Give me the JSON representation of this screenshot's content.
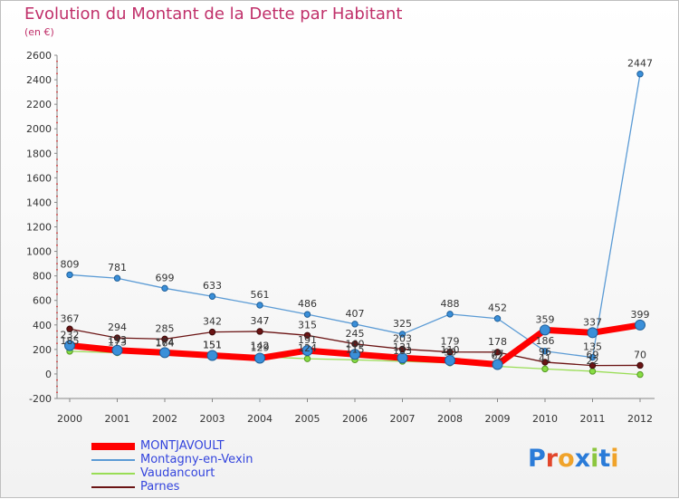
{
  "header": {
    "title": "Evolution du Montant de la Dette par Habitant",
    "unit": "(en €)"
  },
  "logo": {
    "text": "Proxiti",
    "letter_colors": [
      "#2a7bd8",
      "#e2462b",
      "#f0a32a",
      "#2a7bd8",
      "#8cc63f",
      "#2a7bd8",
      "#f0a32a"
    ]
  },
  "chart_data": {
    "type": "line",
    "title": "Evolution du Montant de la Dette par Habitant",
    "ylabel": "(en €)",
    "xlabel": "",
    "x": [
      "2000",
      "2001",
      "2002",
      "2003",
      "2004",
      "2005",
      "2006",
      "2007",
      "2008",
      "2009",
      "2010",
      "2011",
      "2012"
    ],
    "ylim": [
      -200,
      2600
    ],
    "yticks": [
      -200,
      0,
      200,
      400,
      600,
      800,
      1000,
      1200,
      1400,
      1600,
      1800,
      2000,
      2200,
      2400,
      2600
    ],
    "grid": false,
    "legend_position": "bottom-left",
    "series": [
      {
        "name": "MONTJAVOULT",
        "color": "#ff0000",
        "values": [
          232,
          193,
          174,
          151,
          129,
          191,
          160,
          131,
          110,
          77,
          359,
          337,
          399
        ],
        "labels": [
          "232",
          "193",
          "174",
          "151",
          "129",
          "191",
          "160",
          "131",
          "110",
          "77",
          "359",
          "337",
          "399"
        ]
      },
      {
        "name": "Montagny-en-Vexin",
        "color": "#5b9bd5",
        "values": [
          809,
          781,
          699,
          633,
          561,
          486,
          407,
          325,
          488,
          452,
          186,
          135,
          2447
        ],
        "labels": [
          "809",
          "781",
          "699",
          "633",
          "561",
          "486",
          "407",
          "325",
          "488",
          "452",
          "186",
          "135",
          "2447"
        ]
      },
      {
        "name": "Vaudancourt",
        "color": "#99dd55",
        "values": [
          185,
          173,
          164,
          151,
          142,
          124,
          115,
          103,
          90,
          62,
          41,
          22,
          -5
        ],
        "labels": [
          "185",
          "173",
          "164",
          "151",
          "142",
          "124",
          "115",
          "103",
          "90",
          "62",
          "41",
          "22",
          ""
        ]
      },
      {
        "name": "Parnes",
        "color": "#6b1414",
        "values": [
          367,
          294,
          285,
          342,
          347,
          315,
          245,
          203,
          179,
          178,
          96,
          69,
          70
        ],
        "labels": [
          "367",
          "294",
          "285",
          "342",
          "347",
          "315",
          "245",
          "203",
          "179",
          "178",
          "96",
          "69",
          "70"
        ]
      }
    ]
  }
}
